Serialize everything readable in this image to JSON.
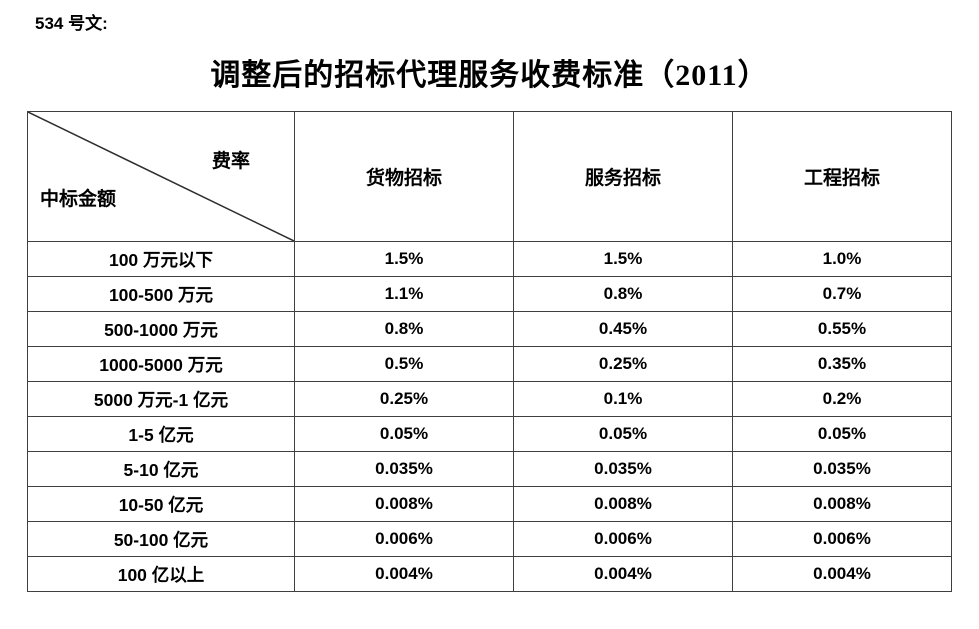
{
  "doc_ref": "534 号文:",
  "title": "调整后的招标代理服务收费标准（2011）",
  "colors": {
    "background": "#ffffff",
    "text": "#000000",
    "border": "#3f3f3f"
  },
  "table": {
    "corner_top_right": "费率",
    "corner_bottom_left": "中标金额",
    "columns": [
      "货物招标",
      "服务招标",
      "工程招标"
    ],
    "rows": [
      {
        "label": "100 万元以下",
        "values": [
          "1.5%",
          "1.5%",
          "1.0%"
        ]
      },
      {
        "label": "100-500 万元",
        "values": [
          "1.1%",
          "0.8%",
          "0.7%"
        ]
      },
      {
        "label": "500-1000 万元",
        "values": [
          "0.8%",
          "0.45%",
          "0.55%"
        ]
      },
      {
        "label": "1000-5000 万元",
        "values": [
          "0.5%",
          "0.25%",
          "0.35%"
        ]
      },
      {
        "label": "5000 万元-1 亿元",
        "values": [
          "0.25%",
          "0.1%",
          "0.2%"
        ]
      },
      {
        "label": "1-5 亿元",
        "values": [
          "0.05%",
          "0.05%",
          "0.05%"
        ]
      },
      {
        "label": "5-10 亿元",
        "values": [
          "0.035%",
          "0.035%",
          "0.035%"
        ]
      },
      {
        "label": "10-50 亿元",
        "values": [
          "0.008%",
          "0.008%",
          "0.008%"
        ]
      },
      {
        "label": "50-100 亿元",
        "values": [
          "0.006%",
          "0.006%",
          "0.006%"
        ]
      },
      {
        "label": "100 亿以上",
        "values": [
          "0.004%",
          "0.004%",
          "0.004%"
        ]
      }
    ]
  }
}
